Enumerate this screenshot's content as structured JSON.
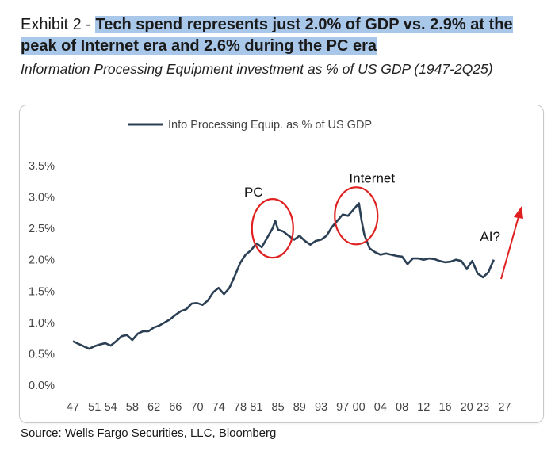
{
  "header": {
    "exhibit_label": "Exhibit 2 - ",
    "title": "Tech spend represents just 2.0% of GDP vs. 2.9% at the peak of Internet era and 2.6% during the PC era",
    "subtitle": "Information Processing Equipment investment as % of US GDP (1947-2Q25)"
  },
  "source": "Source: Wells Fargo Securities, LLC, Bloomberg",
  "colors": {
    "line": "#2b3f55",
    "circle": "#e02020",
    "arrow": "#e02020",
    "highlight": "#a9c7e8"
  },
  "chart_data": {
    "type": "line",
    "title": "Information Processing Equipment investment as % of US GDP (1947-2Q25)",
    "xlabel": "",
    "ylabel": "",
    "xlim": [
      1947,
      2029
    ],
    "ylim": [
      0,
      3.5
    ],
    "yticks": [
      0,
      0.5,
      1.0,
      1.5,
      2.0,
      2.5,
      3.0,
      3.5
    ],
    "ytick_labels": [
      "0.0%",
      "0.5%",
      "1.0%",
      "1.5%",
      "2.0%",
      "2.5%",
      "3.0%",
      "3.5%"
    ],
    "xticks": [
      1947,
      1951,
      1954,
      1958,
      1962,
      1966,
      1970,
      1974,
      1978,
      1981,
      1985,
      1989,
      1993,
      1997,
      2000,
      2004,
      2008,
      2012,
      2016,
      2020,
      2023,
      2027
    ],
    "xtick_labels": [
      "47",
      "51",
      "54",
      "58",
      "62",
      "66",
      "70",
      "74",
      "78",
      "81",
      "85",
      "89",
      "93",
      "97",
      "00",
      "04",
      "08",
      "12",
      "16",
      "20",
      "23",
      "27"
    ],
    "legend": {
      "position": "top-center",
      "entries": [
        "Info Processing Equip. as % of US GDP"
      ]
    },
    "series": [
      {
        "name": "Info Processing Equip. as % of US GDP",
        "x": [
          1947,
          1948,
          1949,
          1950,
          1951,
          1952,
          1953,
          1954,
          1955,
          1956,
          1957,
          1958,
          1959,
          1960,
          1961,
          1962,
          1963,
          1964,
          1965,
          1966,
          1967,
          1968,
          1969,
          1970,
          1971,
          1972,
          1973,
          1974,
          1975,
          1976,
          1977,
          1978,
          1979,
          1980,
          1981,
          1982,
          1983,
          1984,
          1984.5,
          1985,
          1986,
          1987,
          1988,
          1989,
          1990,
          1991,
          1992,
          1993,
          1994,
          1995,
          1996,
          1997,
          1998,
          1999,
          2000,
          2000.5,
          2001,
          2002,
          2003,
          2004,
          2005,
          2006,
          2007,
          2008,
          2009,
          2010,
          2011,
          2012,
          2013,
          2014,
          2015,
          2016,
          2017,
          2018,
          2019,
          2020,
          2020.5,
          2021,
          2022,
          2023,
          2024,
          2025
        ],
        "values": [
          0.7,
          0.66,
          0.62,
          0.58,
          0.62,
          0.65,
          0.67,
          0.63,
          0.7,
          0.78,
          0.8,
          0.72,
          0.82,
          0.86,
          0.86,
          0.92,
          0.95,
          1.0,
          1.05,
          1.12,
          1.18,
          1.21,
          1.3,
          1.31,
          1.28,
          1.35,
          1.48,
          1.55,
          1.45,
          1.55,
          1.74,
          1.95,
          2.08,
          2.15,
          2.26,
          2.2,
          2.35,
          2.5,
          2.62,
          2.48,
          2.45,
          2.38,
          2.32,
          2.38,
          2.3,
          2.24,
          2.3,
          2.32,
          2.38,
          2.52,
          2.62,
          2.72,
          2.7,
          2.8,
          2.9,
          2.62,
          2.4,
          2.18,
          2.12,
          2.08,
          2.1,
          2.08,
          2.06,
          2.05,
          1.93,
          2.02,
          2.02,
          2.0,
          2.02,
          2.01,
          1.98,
          1.96,
          1.97,
          2.0,
          1.98,
          1.85,
          1.92,
          1.98,
          1.78,
          1.72,
          1.8,
          2.0
        ]
      }
    ],
    "annotations": [
      {
        "label": "PC",
        "x": 1984,
        "y": 2.5
      },
      {
        "label": "Internet",
        "x": 1999.5,
        "y": 2.7
      },
      {
        "label": "AI?",
        "x": 2025.5,
        "y": 2.35
      }
    ]
  }
}
